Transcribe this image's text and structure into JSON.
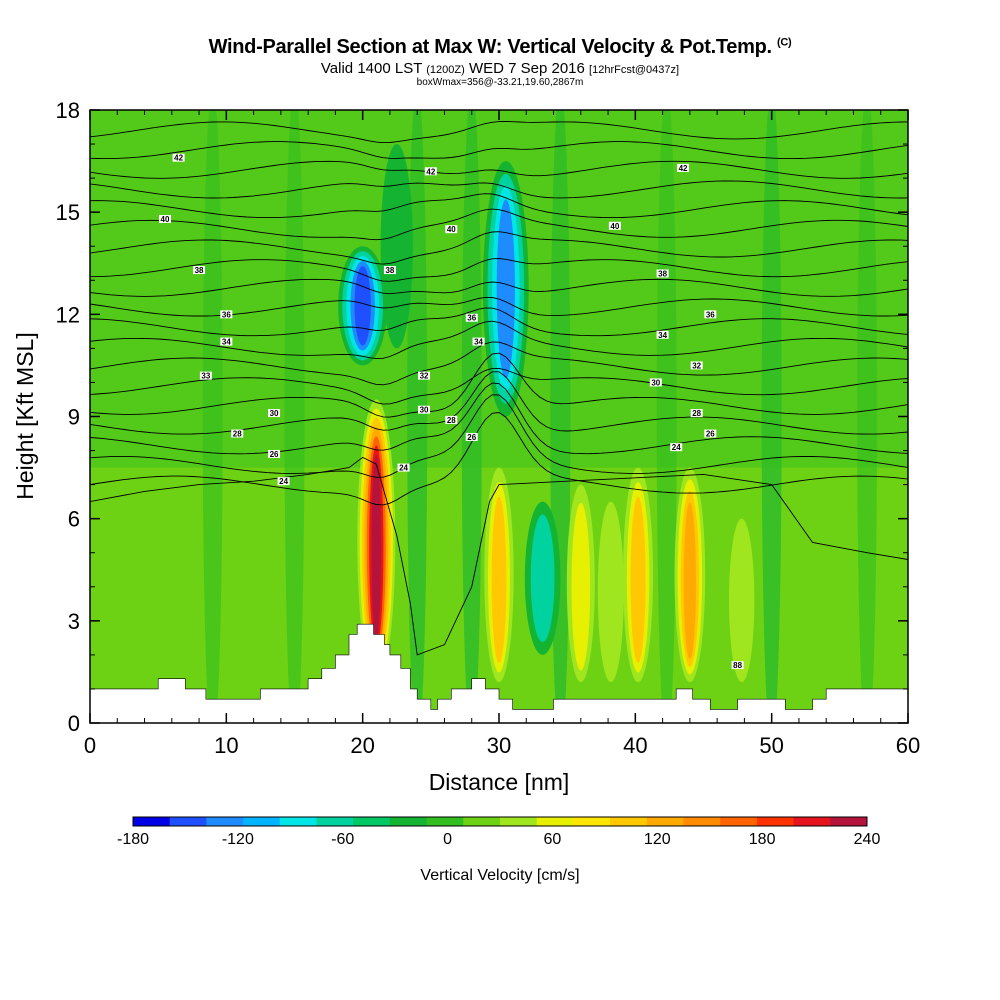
{
  "chart_data": {
    "type": "heatmap",
    "title": "Wind-Parallel Section at Max W: Vertical Velocity & Pot.Temp.",
    "title_tag": "(C)",
    "subtitle_main": "Valid 1400 LST",
    "subtitle_z": "(1200Z)",
    "subtitle_date": "WED 7 Sep 2016",
    "subtitle_fcst": "[12hrFcst@0437z]",
    "subtitle2": "boxWmax=356@-33.21,19.60,2867m",
    "xlabel": "Distance [nm]",
    "ylabel": "Height [Kft MSL]",
    "xlim": [
      0,
      60
    ],
    "ylim": [
      0,
      18
    ],
    "xticks": [
      0,
      10,
      20,
      30,
      40,
      50,
      60
    ],
    "yticks": [
      0,
      3,
      6,
      9,
      12,
      15,
      18
    ],
    "colorbar": {
      "label": "Vertical Velocity [cm/s]",
      "range": [
        -180,
        240
      ],
      "ticks": [
        -180,
        -120,
        -60,
        0,
        60,
        120,
        180,
        240
      ],
      "colors": [
        "#0000e6",
        "#1e50ff",
        "#1e8cff",
        "#00b4ff",
        "#00e6e6",
        "#00d2a0",
        "#00c864",
        "#14b432",
        "#32be1e",
        "#6ed214",
        "#a0e61e",
        "#e6f000",
        "#ffe600",
        "#ffc800",
        "#ffaa00",
        "#ff8c00",
        "#ff6400",
        "#ff3200",
        "#e6141e",
        "#b4143c"
      ]
    },
    "updraft_columns": [
      {
        "x": 21.0,
        "w": 240,
        "top_kft": 9.5
      },
      {
        "x": 30.0,
        "w": 110,
        "top_kft": 7.5
      },
      {
        "x": 36.0,
        "w": 90,
        "top_kft": 7.0
      },
      {
        "x": 40.2,
        "w": 120,
        "top_kft": 7.5
      },
      {
        "x": 44.0,
        "w": 130,
        "top_kft": 7.5
      },
      {
        "x": 38.2,
        "w": 60,
        "top_kft": 6.5
      },
      {
        "x": 47.8,
        "w": 50,
        "top_kft": 6.0
      }
    ],
    "downdraft_columns": [
      {
        "x": 20.0,
        "w": -150,
        "bottom_kft": 10.5,
        "top_kft": 14.0
      },
      {
        "x": 30.5,
        "w": -130,
        "bottom_kft": 9.0,
        "top_kft": 16.5
      },
      {
        "x": 33.2,
        "w": -70,
        "bottom_kft": 2.0,
        "top_kft": 6.5
      },
      {
        "x": 22.5,
        "w": -50,
        "bottom_kft": 11.0,
        "top_kft": 17.0
      }
    ],
    "terrain_kft": [
      [
        0,
        1.0
      ],
      [
        5,
        1.0
      ],
      [
        5,
        1.3
      ],
      [
        7,
        1.3
      ],
      [
        7,
        1.0
      ],
      [
        8.5,
        1.0
      ],
      [
        8.5,
        0.7
      ],
      [
        12.5,
        0.7
      ],
      [
        12.5,
        1.0
      ],
      [
        16,
        1.0
      ],
      [
        16,
        1.3
      ],
      [
        17,
        1.3
      ],
      [
        17,
        1.6
      ],
      [
        18,
        1.6
      ],
      [
        18,
        2.0
      ],
      [
        19,
        2.0
      ],
      [
        19,
        2.6
      ],
      [
        19.6,
        2.6
      ],
      [
        19.6,
        2.9
      ],
      [
        20.8,
        2.9
      ],
      [
        20.8,
        2.6
      ],
      [
        21.6,
        2.6
      ],
      [
        21.6,
        2.3
      ],
      [
        22,
        2.3
      ],
      [
        22,
        2.0
      ],
      [
        22.8,
        2.0
      ],
      [
        22.8,
        1.6
      ],
      [
        23.5,
        1.6
      ],
      [
        23.5,
        1.0
      ],
      [
        24,
        1.0
      ],
      [
        24,
        0.7
      ],
      [
        25,
        0.7
      ],
      [
        25,
        0.4
      ],
      [
        25.5,
        0.4
      ],
      [
        25.5,
        0.7
      ],
      [
        26.5,
        0.7
      ],
      [
        26.5,
        1.0
      ],
      [
        28,
        1.0
      ],
      [
        28,
        1.3
      ],
      [
        29,
        1.3
      ],
      [
        29,
        1.0
      ],
      [
        30,
        1.0
      ],
      [
        30,
        0.7
      ],
      [
        31,
        0.7
      ],
      [
        31,
        0.4
      ],
      [
        34,
        0.4
      ],
      [
        34,
        0.7
      ],
      [
        43,
        0.7
      ],
      [
        43,
        1.0
      ],
      [
        44.2,
        1.0
      ],
      [
        44.2,
        0.7
      ],
      [
        45.5,
        0.7
      ],
      [
        45.5,
        0.4
      ],
      [
        47.5,
        0.4
      ],
      [
        47.5,
        0.7
      ],
      [
        51,
        0.7
      ],
      [
        51,
        0.4
      ],
      [
        53,
        0.4
      ],
      [
        53,
        0.7
      ],
      [
        54,
        0.7
      ],
      [
        54,
        1.0
      ],
      [
        60,
        1.0
      ]
    ],
    "theta_contours": {
      "levels": [
        24,
        25,
        26,
        27,
        28,
        29,
        30,
        31,
        32,
        33,
        34,
        35,
        36,
        37,
        38,
        39,
        40,
        41,
        42
      ],
      "labels": [
        {
          "text": "42",
          "x": 6.5,
          "y": 16.6
        },
        {
          "text": "42",
          "x": 25,
          "y": 16.2
        },
        {
          "text": "42",
          "x": 43.5,
          "y": 16.3
        },
        {
          "text": "40",
          "x": 5.5,
          "y": 14.8
        },
        {
          "text": "40",
          "x": 26.5,
          "y": 14.5
        },
        {
          "text": "40",
          "x": 38.5,
          "y": 14.6
        },
        {
          "text": "38",
          "x": 8,
          "y": 13.3
        },
        {
          "text": "38",
          "x": 22,
          "y": 13.3
        },
        {
          "text": "38",
          "x": 42,
          "y": 13.2
        },
        {
          "text": "36",
          "x": 10,
          "y": 12.0
        },
        {
          "text": "36",
          "x": 28,
          "y": 11.9
        },
        {
          "text": "36",
          "x": 45.5,
          "y": 12.0
        },
        {
          "text": "34",
          "x": 10,
          "y": 11.2
        },
        {
          "text": "34",
          "x": 28.5,
          "y": 11.2
        },
        {
          "text": "34",
          "x": 42,
          "y": 11.4
        },
        {
          "text": "33",
          "x": 8.5,
          "y": 10.2
        },
        {
          "text": "32",
          "x": 24.5,
          "y": 10.2
        },
        {
          "text": "32",
          "x": 44.5,
          "y": 10.5
        },
        {
          "text": "30",
          "x": 13.5,
          "y": 9.1
        },
        {
          "text": "30",
          "x": 24.5,
          "y": 9.2
        },
        {
          "text": "30",
          "x": 41.5,
          "y": 10.0
        },
        {
          "text": "28",
          "x": 10.8,
          "y": 8.5
        },
        {
          "text": "28",
          "x": 26.5,
          "y": 8.9
        },
        {
          "text": "28",
          "x": 44.5,
          "y": 9.1
        },
        {
          "text": "26",
          "x": 13.5,
          "y": 7.9
        },
        {
          "text": "26",
          "x": 28,
          "y": 8.4
        },
        {
          "text": "26",
          "x": 45.5,
          "y": 8.5
        },
        {
          "text": "24",
          "x": 14.2,
          "y": 7.1
        },
        {
          "text": "24",
          "x": 23,
          "y": 7.5
        },
        {
          "text": "24",
          "x": 43,
          "y": 8.1
        },
        {
          "text": "88",
          "x": 47.5,
          "y": 1.7
        }
      ]
    }
  }
}
